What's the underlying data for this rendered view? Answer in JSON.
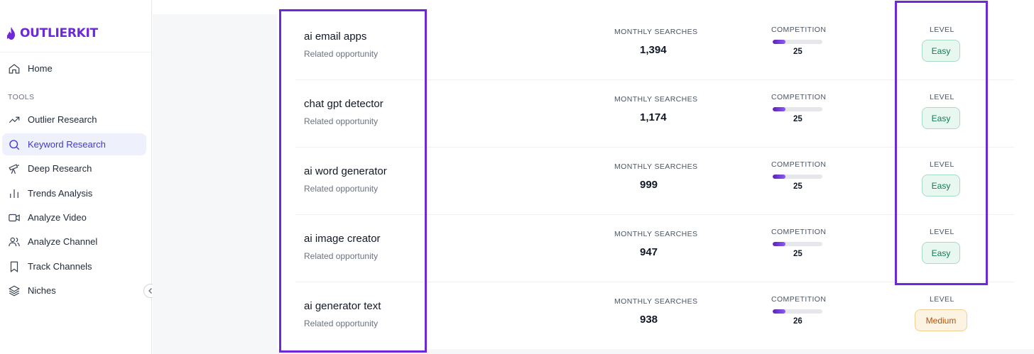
{
  "app": {
    "name": "OUTLIERKIT",
    "brand_color": "#6d28d9"
  },
  "sidebar": {
    "home_label": "Home",
    "section_label": "TOOLS",
    "items": [
      {
        "label": "Outlier Research",
        "icon": "trend-up-icon"
      },
      {
        "label": "Keyword Research",
        "icon": "search-icon",
        "active": true
      },
      {
        "label": "Deep Research",
        "icon": "telescope-icon"
      },
      {
        "label": "Trends Analysis",
        "icon": "bar-chart-icon"
      },
      {
        "label": "Analyze Video",
        "icon": "video-icon"
      },
      {
        "label": "Analyze Channel",
        "icon": "users-icon"
      },
      {
        "label": "Track Channels",
        "icon": "bookmark-icon"
      },
      {
        "label": "Niches",
        "icon": "layers-icon"
      }
    ],
    "collapse_icon": "chevron-left-icon"
  },
  "table": {
    "monthly_searches_label": "MONTHLY SEARCHES",
    "competition_label": "COMPETITION",
    "level_label": "LEVEL",
    "rows": [
      {
        "keyword": "ai email apps",
        "subtitle": "Related opportunity",
        "monthly_searches": "1,394",
        "competition": "25",
        "level": "Easy"
      },
      {
        "keyword": "chat gpt detector",
        "subtitle": "Related opportunity",
        "monthly_searches": "1,174",
        "competition": "25",
        "level": "Easy"
      },
      {
        "keyword": "ai word generator",
        "subtitle": "Related opportunity",
        "monthly_searches": "999",
        "competition": "25",
        "level": "Easy"
      },
      {
        "keyword": "ai image creator",
        "subtitle": "Related opportunity",
        "monthly_searches": "947",
        "competition": "25",
        "level": "Easy"
      },
      {
        "keyword": "ai generator text",
        "subtitle": "Related opportunity",
        "monthly_searches": "938",
        "competition": "26",
        "level": "Medium"
      }
    ]
  },
  "colors": {
    "highlight": "#6d28d9",
    "easy_text": "#0f7b56",
    "medium_text": "#b45309"
  }
}
